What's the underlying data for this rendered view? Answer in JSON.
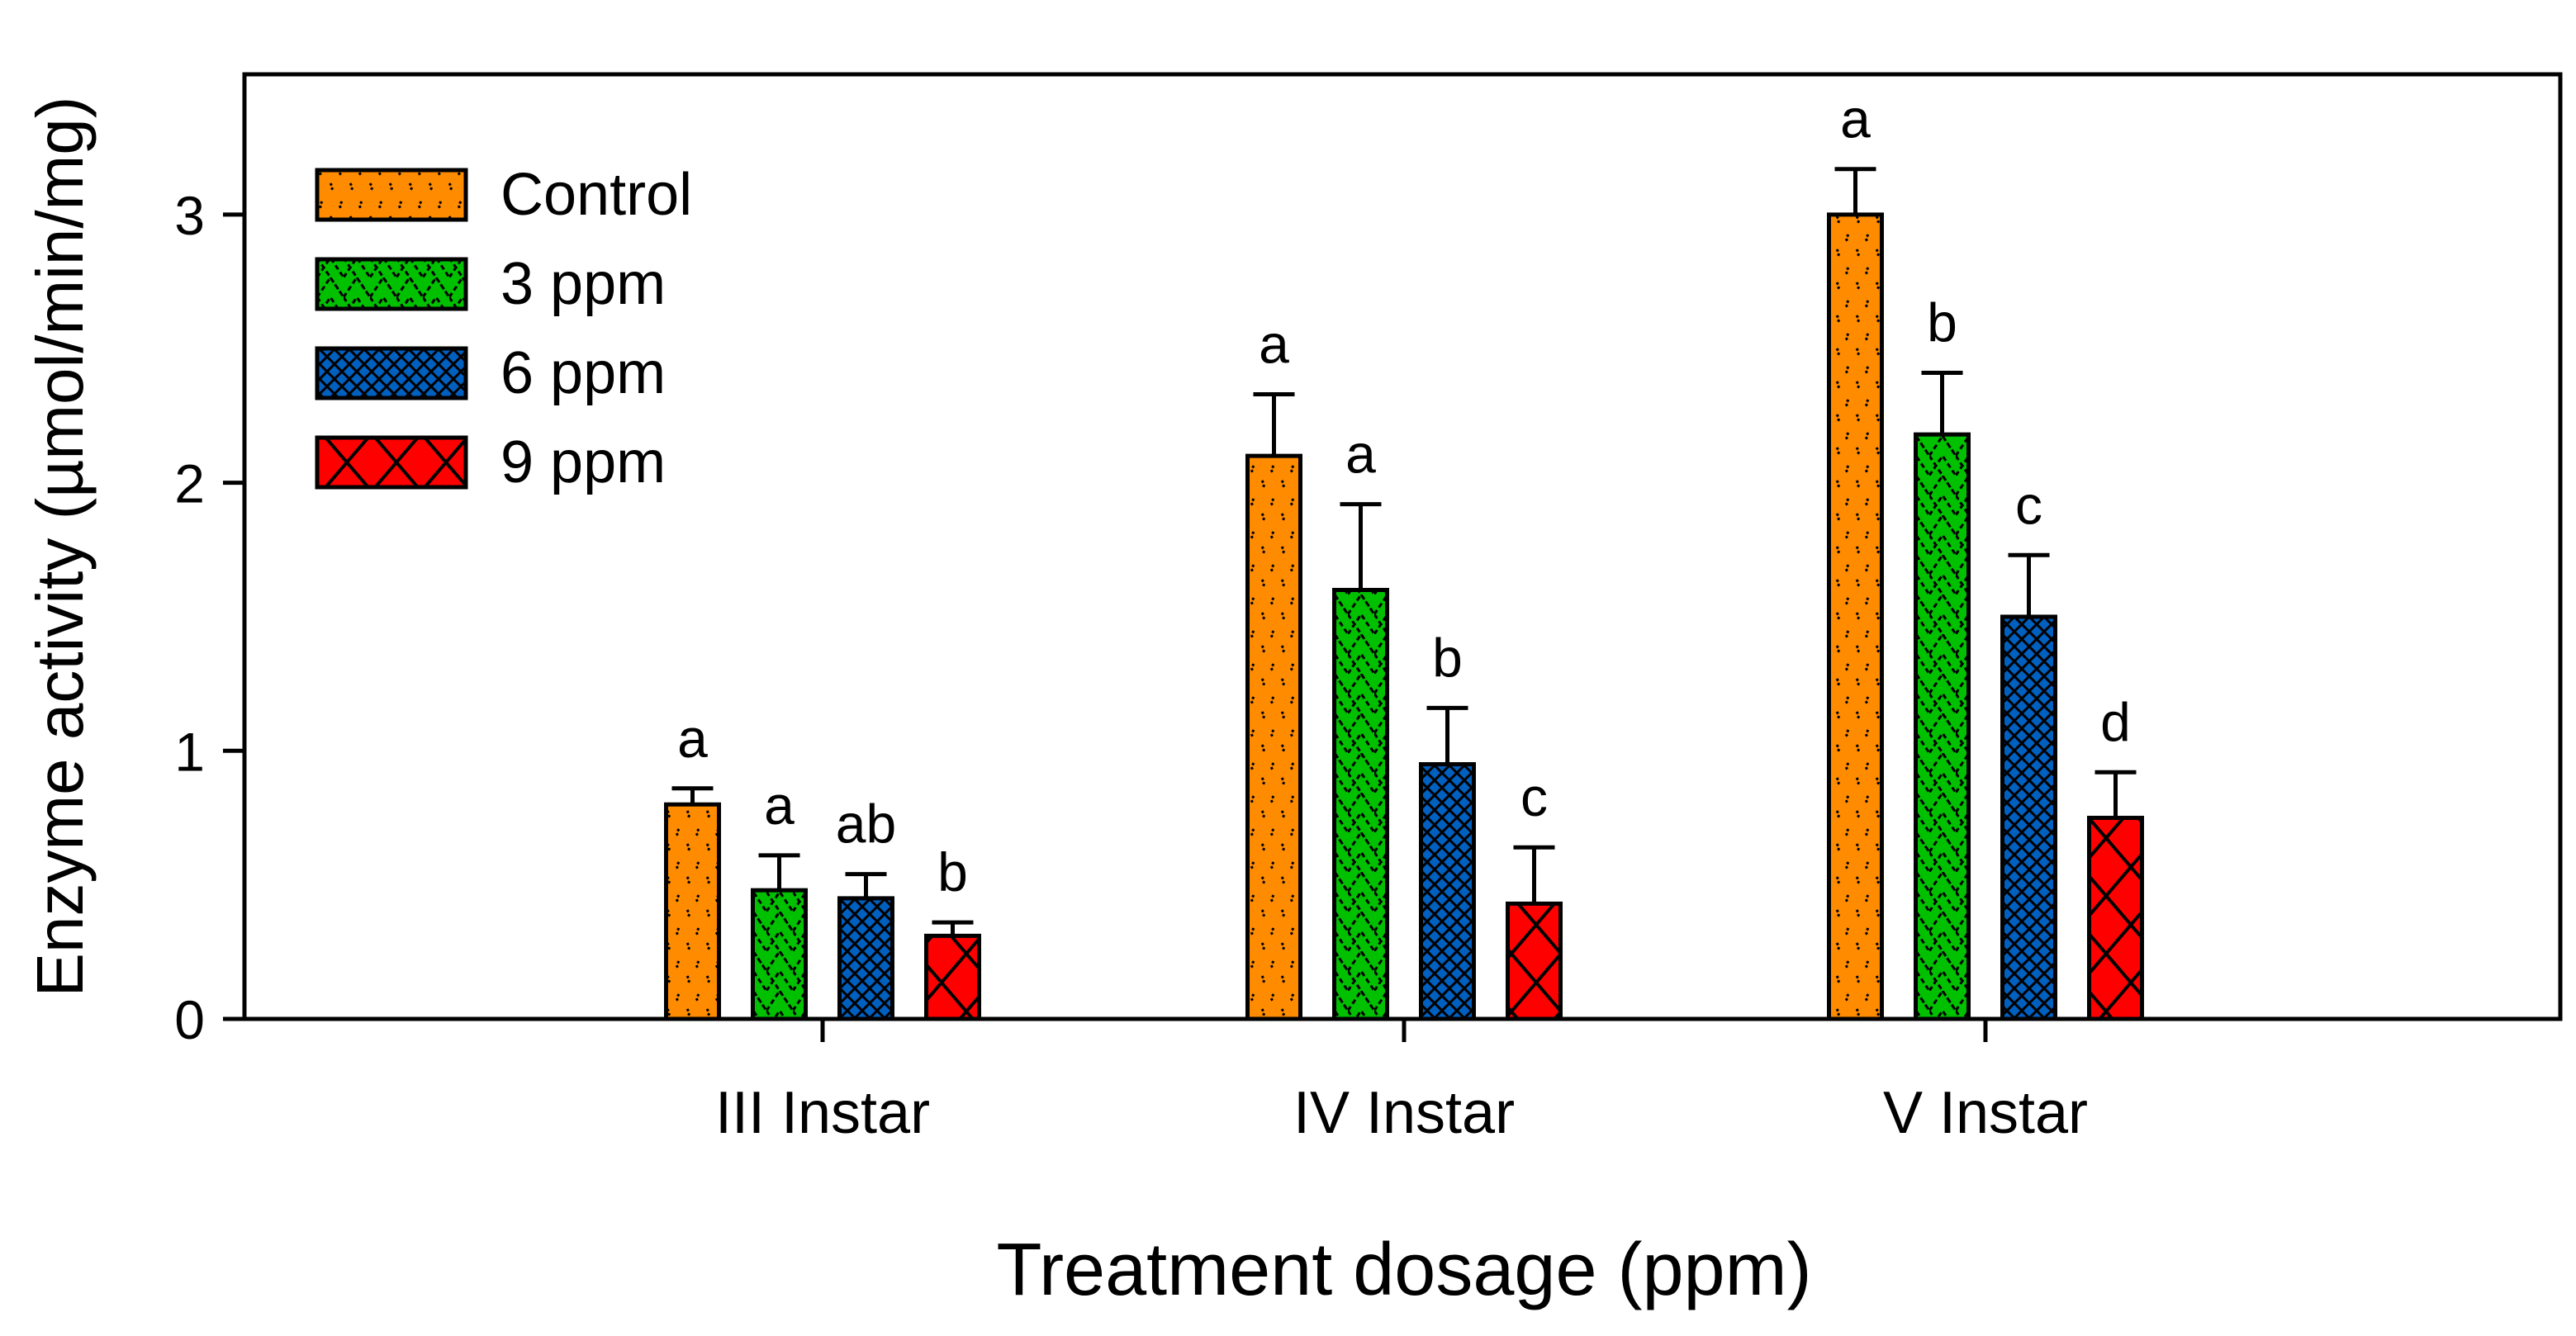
{
  "chart_data": {
    "type": "bar",
    "title": "",
    "xlabel": "Treatment dosage (ppm)",
    "ylabel": "Enzyme activity (µmol/min/mg)",
    "ylim": [
      0,
      3.5
    ],
    "yticks": [
      0,
      1,
      2,
      3
    ],
    "ytick_labels": [
      "0",
      "1",
      "2",
      "3"
    ],
    "categories": [
      "III Instar",
      "IV Instar",
      "V Instar"
    ],
    "legend_position": "top-left",
    "series": [
      {
        "name": "Control",
        "color": "#ff8c00",
        "pattern": "dots",
        "values": [
          0.8,
          2.1,
          3.0
        ],
        "errors": [
          0.06,
          0.23,
          0.17
        ],
        "letters": [
          "a",
          "a",
          "a"
        ]
      },
      {
        "name": "3 ppm",
        "color": "#00c000",
        "pattern": "zigzag",
        "values": [
          0.48,
          1.6,
          2.18
        ],
        "errors": [
          0.13,
          0.32,
          0.23
        ],
        "letters": [
          "a",
          "a",
          "b"
        ]
      },
      {
        "name": "6 ppm",
        "color": "#0060c0",
        "pattern": "finecross",
        "values": [
          0.45,
          0.95,
          1.5
        ],
        "errors": [
          0.09,
          0.21,
          0.23
        ],
        "letters": [
          "ab",
          "b",
          "c"
        ]
      },
      {
        "name": "9 ppm",
        "color": "#ff0000",
        "pattern": "crosshatch",
        "values": [
          0.31,
          0.43,
          0.75
        ],
        "errors": [
          0.05,
          0.21,
          0.17
        ],
        "letters": [
          "b",
          "c",
          "d"
        ]
      }
    ]
  }
}
